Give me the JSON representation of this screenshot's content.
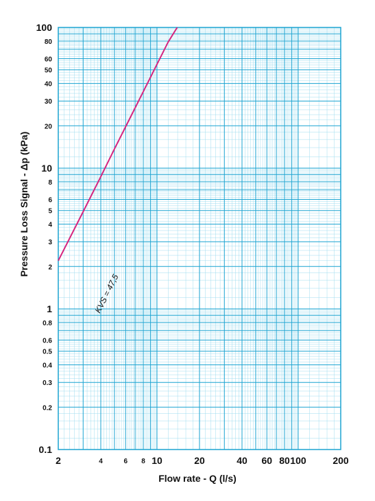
{
  "chart_data": {
    "type": "line",
    "title": "",
    "xlabel": "Flow rate - Q (l/s)",
    "ylabel": "Pressure Loss Signal  - Δp (kPa)",
    "x_scale": "log",
    "y_scale": "log",
    "xlim": [
      2,
      200
    ],
    "ylim": [
      0.1,
      100
    ],
    "grid": true,
    "legend": "none",
    "x_ticks": [
      {
        "value": 2,
        "label": "2"
      },
      {
        "value": 4,
        "label": "4"
      },
      {
        "value": 6,
        "label": "6"
      },
      {
        "value": 8,
        "label": "8"
      },
      {
        "value": 10,
        "label": "10"
      },
      {
        "value": 20,
        "label": "20"
      },
      {
        "value": 40,
        "label": "40"
      },
      {
        "value": 60,
        "label": "60"
      },
      {
        "value": 80,
        "label": "80"
      },
      {
        "value": 100,
        "label": "100"
      },
      {
        "value": 200,
        "label": "200"
      }
    ],
    "y_ticks": [
      {
        "value": 0.1,
        "label": "0.1"
      },
      {
        "value": 0.2,
        "label": "0.2"
      },
      {
        "value": 0.3,
        "label": "0.3"
      },
      {
        "value": 0.4,
        "label": "0.4"
      },
      {
        "value": 0.5,
        "label": "0.5"
      },
      {
        "value": 0.6,
        "label": "0.6"
      },
      {
        "value": 0.8,
        "label": "0.8"
      },
      {
        "value": 1,
        "label": "1"
      },
      {
        "value": 2,
        "label": "2"
      },
      {
        "value": 3,
        "label": "3"
      },
      {
        "value": 4,
        "label": "4"
      },
      {
        "value": 5,
        "label": "5"
      },
      {
        "value": 6,
        "label": "6"
      },
      {
        "value": 8,
        "label": "8"
      },
      {
        "value": 10,
        "label": "10"
      },
      {
        "value": 20,
        "label": "20"
      },
      {
        "value": 30,
        "label": "30"
      },
      {
        "value": 40,
        "label": "40"
      },
      {
        "value": 50,
        "label": "50"
      },
      {
        "value": 60,
        "label": "60"
      },
      {
        "value": 80,
        "label": "80"
      },
      {
        "value": 100,
        "label": "100"
      }
    ],
    "series": [
      {
        "label": "KVS = 47,5",
        "kvs": 47.5,
        "color": "#d6247e",
        "x": [
          2,
          3,
          4,
          5,
          6,
          8,
          10,
          12,
          13.9
        ],
        "y": [
          2.2,
          4.9,
          8.7,
          13.7,
          19.7,
          35.0,
          54.7,
          78.8,
          100
        ]
      }
    ],
    "colors": {
      "grid_major": "#1aa3d1",
      "grid_minor": "#9fdcef",
      "frame": "#1aa3d1"
    }
  }
}
